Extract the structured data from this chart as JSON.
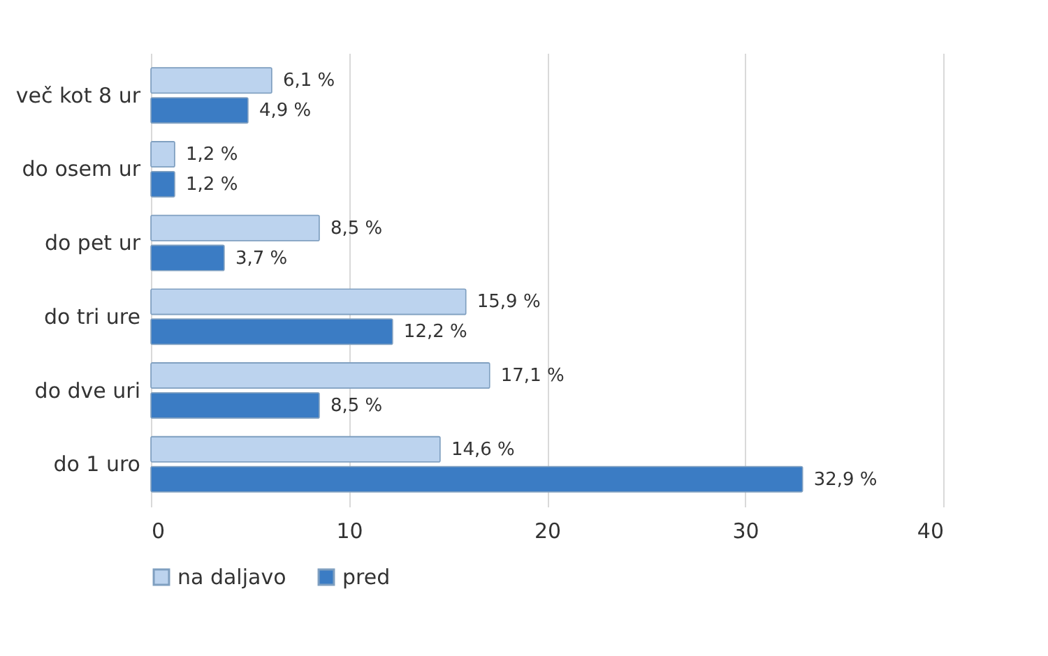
{
  "chart_data": {
    "type": "bar",
    "orientation": "horizontal",
    "categories": [
      "več kot 8 ur",
      "do osem ur",
      "do pet ur",
      "do tri ure",
      "do dve uri",
      "do 1 uro"
    ],
    "series": [
      {
        "name": "na daljavo",
        "color": "#bcd3ee",
        "values": [
          6.1,
          1.2,
          8.5,
          15.9,
          17.1,
          14.6
        ],
        "value_labels": [
          "6,1 %",
          "1,2 %",
          "8,5 %",
          "15,9 %",
          "17,1 %",
          "14,6 %"
        ]
      },
      {
        "name": "pred",
        "color": "#3b7cc4",
        "values": [
          4.9,
          1.2,
          3.7,
          12.2,
          8.5,
          32.9
        ],
        "value_labels": [
          "4,9 %",
          "1,2 %",
          "3,7 %",
          "12,2 %",
          "8,5 %",
          "32,9 %"
        ]
      }
    ],
    "xlim": [
      0,
      40
    ],
    "xticks": [
      0,
      10,
      20,
      30,
      40
    ],
    "grid": "x",
    "legend": "bottom"
  }
}
